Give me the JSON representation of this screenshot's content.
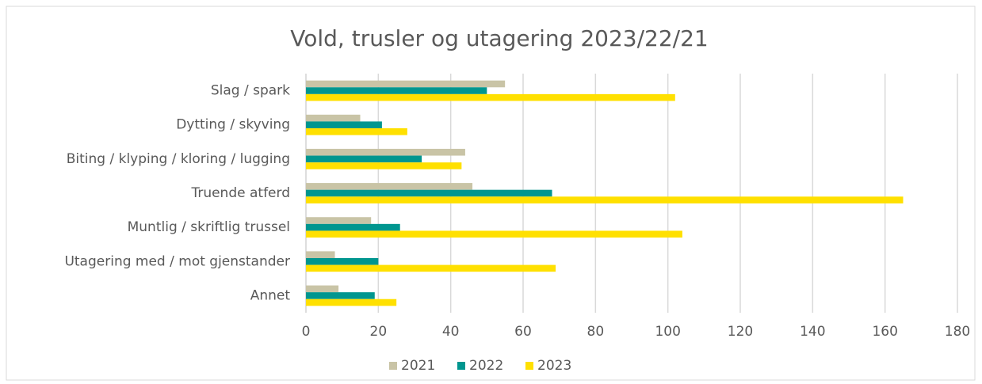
{
  "chart_data": {
    "type": "hbar",
    "title": "Vold, trusler og utagering 2023/22/21",
    "categories": [
      "Slag / spark",
      "Dytting / skyving",
      "Biting / klyping / kloring / lugging",
      "Truende atferd",
      "Muntlig / skriftlig trussel",
      "Utagering med / mot gjenstander",
      "Annet"
    ],
    "series": [
      {
        "name": "2021",
        "color": "#c9c4a6",
        "values": [
          55,
          15,
          44,
          46,
          18,
          8,
          9
        ]
      },
      {
        "name": "2022",
        "color": "#00968f",
        "values": [
          50,
          21,
          32,
          68,
          26,
          20,
          19
        ]
      },
      {
        "name": "2023",
        "color": "#ffe000",
        "values": [
          102,
          28,
          43,
          165,
          104,
          69,
          25
        ]
      }
    ],
    "xlim": [
      0,
      180
    ],
    "xticks": [
      0,
      20,
      40,
      60,
      80,
      100,
      120,
      140,
      160,
      180
    ],
    "grid": true,
    "legend": "bottom"
  }
}
